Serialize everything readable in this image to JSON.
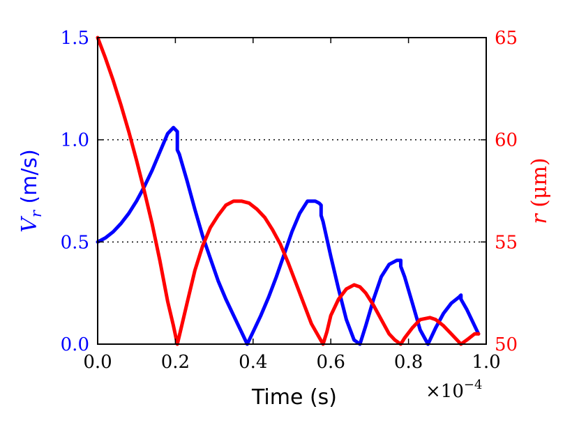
{
  "chart_data": {
    "type": "line",
    "xlabel": "Time (s)",
    "x_multiplier_label": "×10",
    "x_multiplier_exp": "−4",
    "xlim": [
      0.0,
      1.0
    ],
    "x_ticks": [
      "0.0",
      "0.2",
      "0.4",
      "0.6",
      "0.8",
      "1.0"
    ],
    "x_tick_values": [
      0.0,
      0.2,
      0.4,
      0.6,
      0.8,
      1.0
    ],
    "y_left": {
      "label_var": "V",
      "label_sub": "r",
      "label_unit": " (m/s)",
      "lim": [
        0.0,
        1.5
      ],
      "ticks": [
        "0.0",
        "0.5",
        "1.0",
        "1.5"
      ],
      "tick_values": [
        0.0,
        0.5,
        1.0,
        1.5
      ],
      "color": "#0000ff"
    },
    "y_right": {
      "label_var": "r",
      "label_unit": " (μm)",
      "lim": [
        50,
        65
      ],
      "ticks": [
        "50",
        "55",
        "60",
        "65"
      ],
      "tick_values": [
        50,
        55,
        60,
        65
      ],
      "color": "#ff0000"
    },
    "gridlines_y_left": [
      0.5,
      1.0
    ],
    "series": [
      {
        "axis": "left",
        "color": "#0000ff",
        "x": [
          0.0,
          0.02,
          0.04,
          0.06,
          0.08,
          0.1,
          0.12,
          0.14,
          0.16,
          0.18,
          0.195,
          0.2,
          0.205,
          0.205,
          0.21,
          0.23,
          0.25,
          0.27,
          0.29,
          0.31,
          0.33,
          0.35,
          0.37,
          0.385,
          0.4,
          0.42,
          0.44,
          0.46,
          0.48,
          0.5,
          0.52,
          0.54,
          0.56,
          0.57,
          0.575,
          0.575,
          0.58,
          0.6,
          0.62,
          0.64,
          0.66,
          0.675,
          0.69,
          0.71,
          0.73,
          0.75,
          0.77,
          0.78,
          0.78,
          0.79,
          0.81,
          0.83,
          0.85,
          0.87,
          0.89,
          0.91,
          0.93,
          0.935,
          0.935,
          0.95,
          0.97,
          0.98
        ],
        "y": [
          0.5,
          0.52,
          0.55,
          0.59,
          0.64,
          0.7,
          0.77,
          0.85,
          0.94,
          1.03,
          1.06,
          1.05,
          1.04,
          0.95,
          0.93,
          0.8,
          0.66,
          0.53,
          0.42,
          0.31,
          0.22,
          0.14,
          0.06,
          0.0,
          0.06,
          0.14,
          0.23,
          0.33,
          0.44,
          0.55,
          0.64,
          0.7,
          0.7,
          0.69,
          0.68,
          0.63,
          0.6,
          0.43,
          0.27,
          0.12,
          0.02,
          0.0,
          0.09,
          0.22,
          0.33,
          0.39,
          0.41,
          0.41,
          0.38,
          0.33,
          0.2,
          0.07,
          0.0,
          0.08,
          0.15,
          0.2,
          0.23,
          0.24,
          0.22,
          0.17,
          0.09,
          0.05
        ]
      },
      {
        "axis": "right",
        "color": "#ff0000",
        "x": [
          0.0,
          0.02,
          0.04,
          0.06,
          0.08,
          0.1,
          0.12,
          0.14,
          0.16,
          0.18,
          0.195,
          0.205,
          0.215,
          0.23,
          0.25,
          0.27,
          0.29,
          0.31,
          0.33,
          0.35,
          0.37,
          0.39,
          0.41,
          0.43,
          0.45,
          0.47,
          0.49,
          0.51,
          0.53,
          0.55,
          0.565,
          0.58,
          0.59,
          0.6,
          0.62,
          0.64,
          0.66,
          0.675,
          0.69,
          0.71,
          0.73,
          0.75,
          0.765,
          0.78,
          0.79,
          0.81,
          0.83,
          0.855,
          0.87,
          0.89,
          0.91,
          0.935,
          0.95,
          0.97,
          0.98
        ],
        "y": [
          65.0,
          64.0,
          62.9,
          61.7,
          60.4,
          59.0,
          57.5,
          55.9,
          54.1,
          52.1,
          50.9,
          50.0,
          50.8,
          52.0,
          53.6,
          54.8,
          55.7,
          56.3,
          56.8,
          57.0,
          57.0,
          56.9,
          56.6,
          56.2,
          55.6,
          54.9,
          54.0,
          53.0,
          52.0,
          51.0,
          50.5,
          50.0,
          50.6,
          51.4,
          52.2,
          52.7,
          52.9,
          52.8,
          52.5,
          51.9,
          51.2,
          50.5,
          50.2,
          50.0,
          50.3,
          50.8,
          51.2,
          51.3,
          51.2,
          50.9,
          50.5,
          50.0,
          50.2,
          50.5,
          50.5
        ]
      }
    ]
  }
}
